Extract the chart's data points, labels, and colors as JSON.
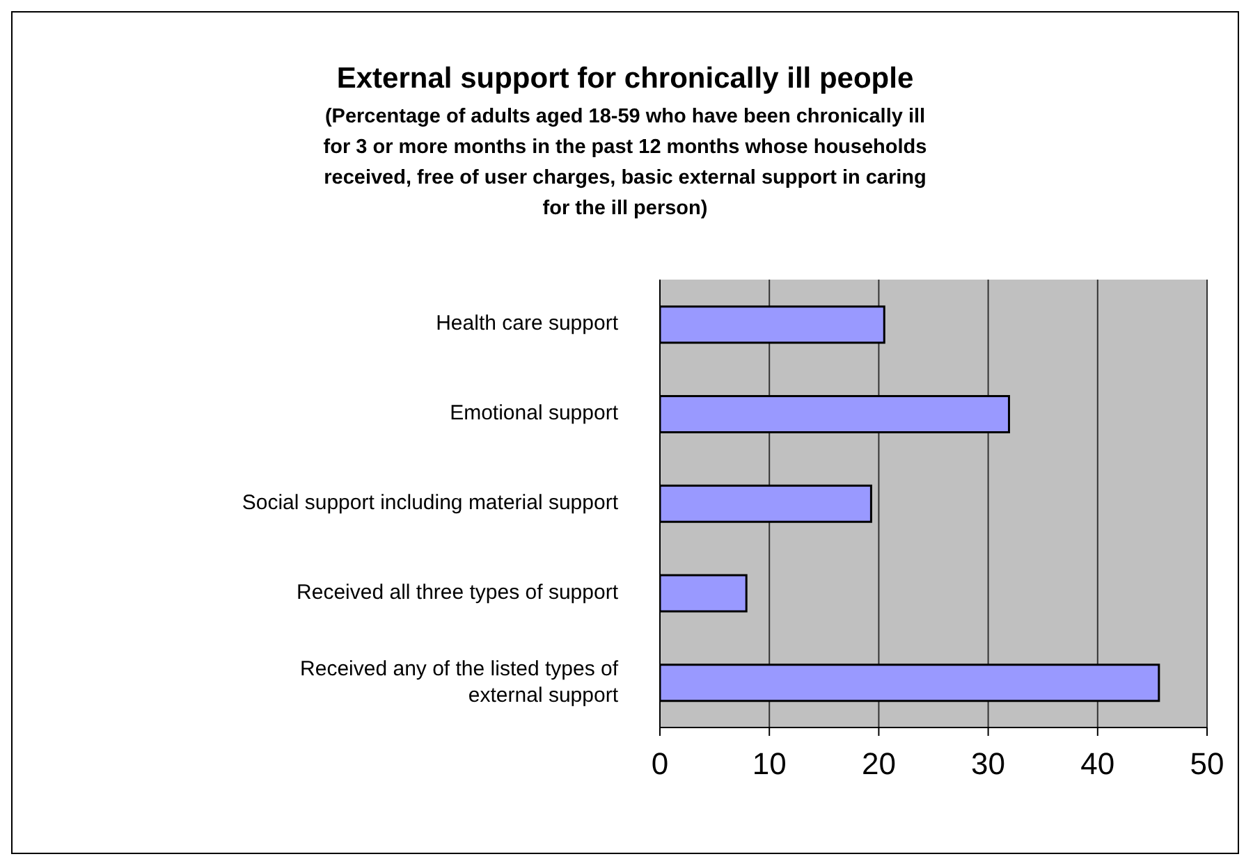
{
  "chart_data": {
    "type": "bar",
    "orientation": "horizontal",
    "title": "External support for chronically ill people",
    "subtitle": "(Percentage of adults aged 18-59 who have been chronically ill for 3 or more months in the past 12 months whose households received, free of user charges, basic external support in caring for the ill person)",
    "categories": [
      "Health care support",
      "Emotional support",
      "Social support including material support",
      "Received all three types of support",
      "Received any of the listed types of external support"
    ],
    "values": [
      20.5,
      31.9,
      19.3,
      7.9,
      45.6
    ],
    "color": "#9999ff",
    "xlim": [
      0,
      50
    ],
    "xticks": [
      0,
      10,
      20,
      30,
      40,
      50
    ],
    "grid": "x",
    "legend": false
  }
}
